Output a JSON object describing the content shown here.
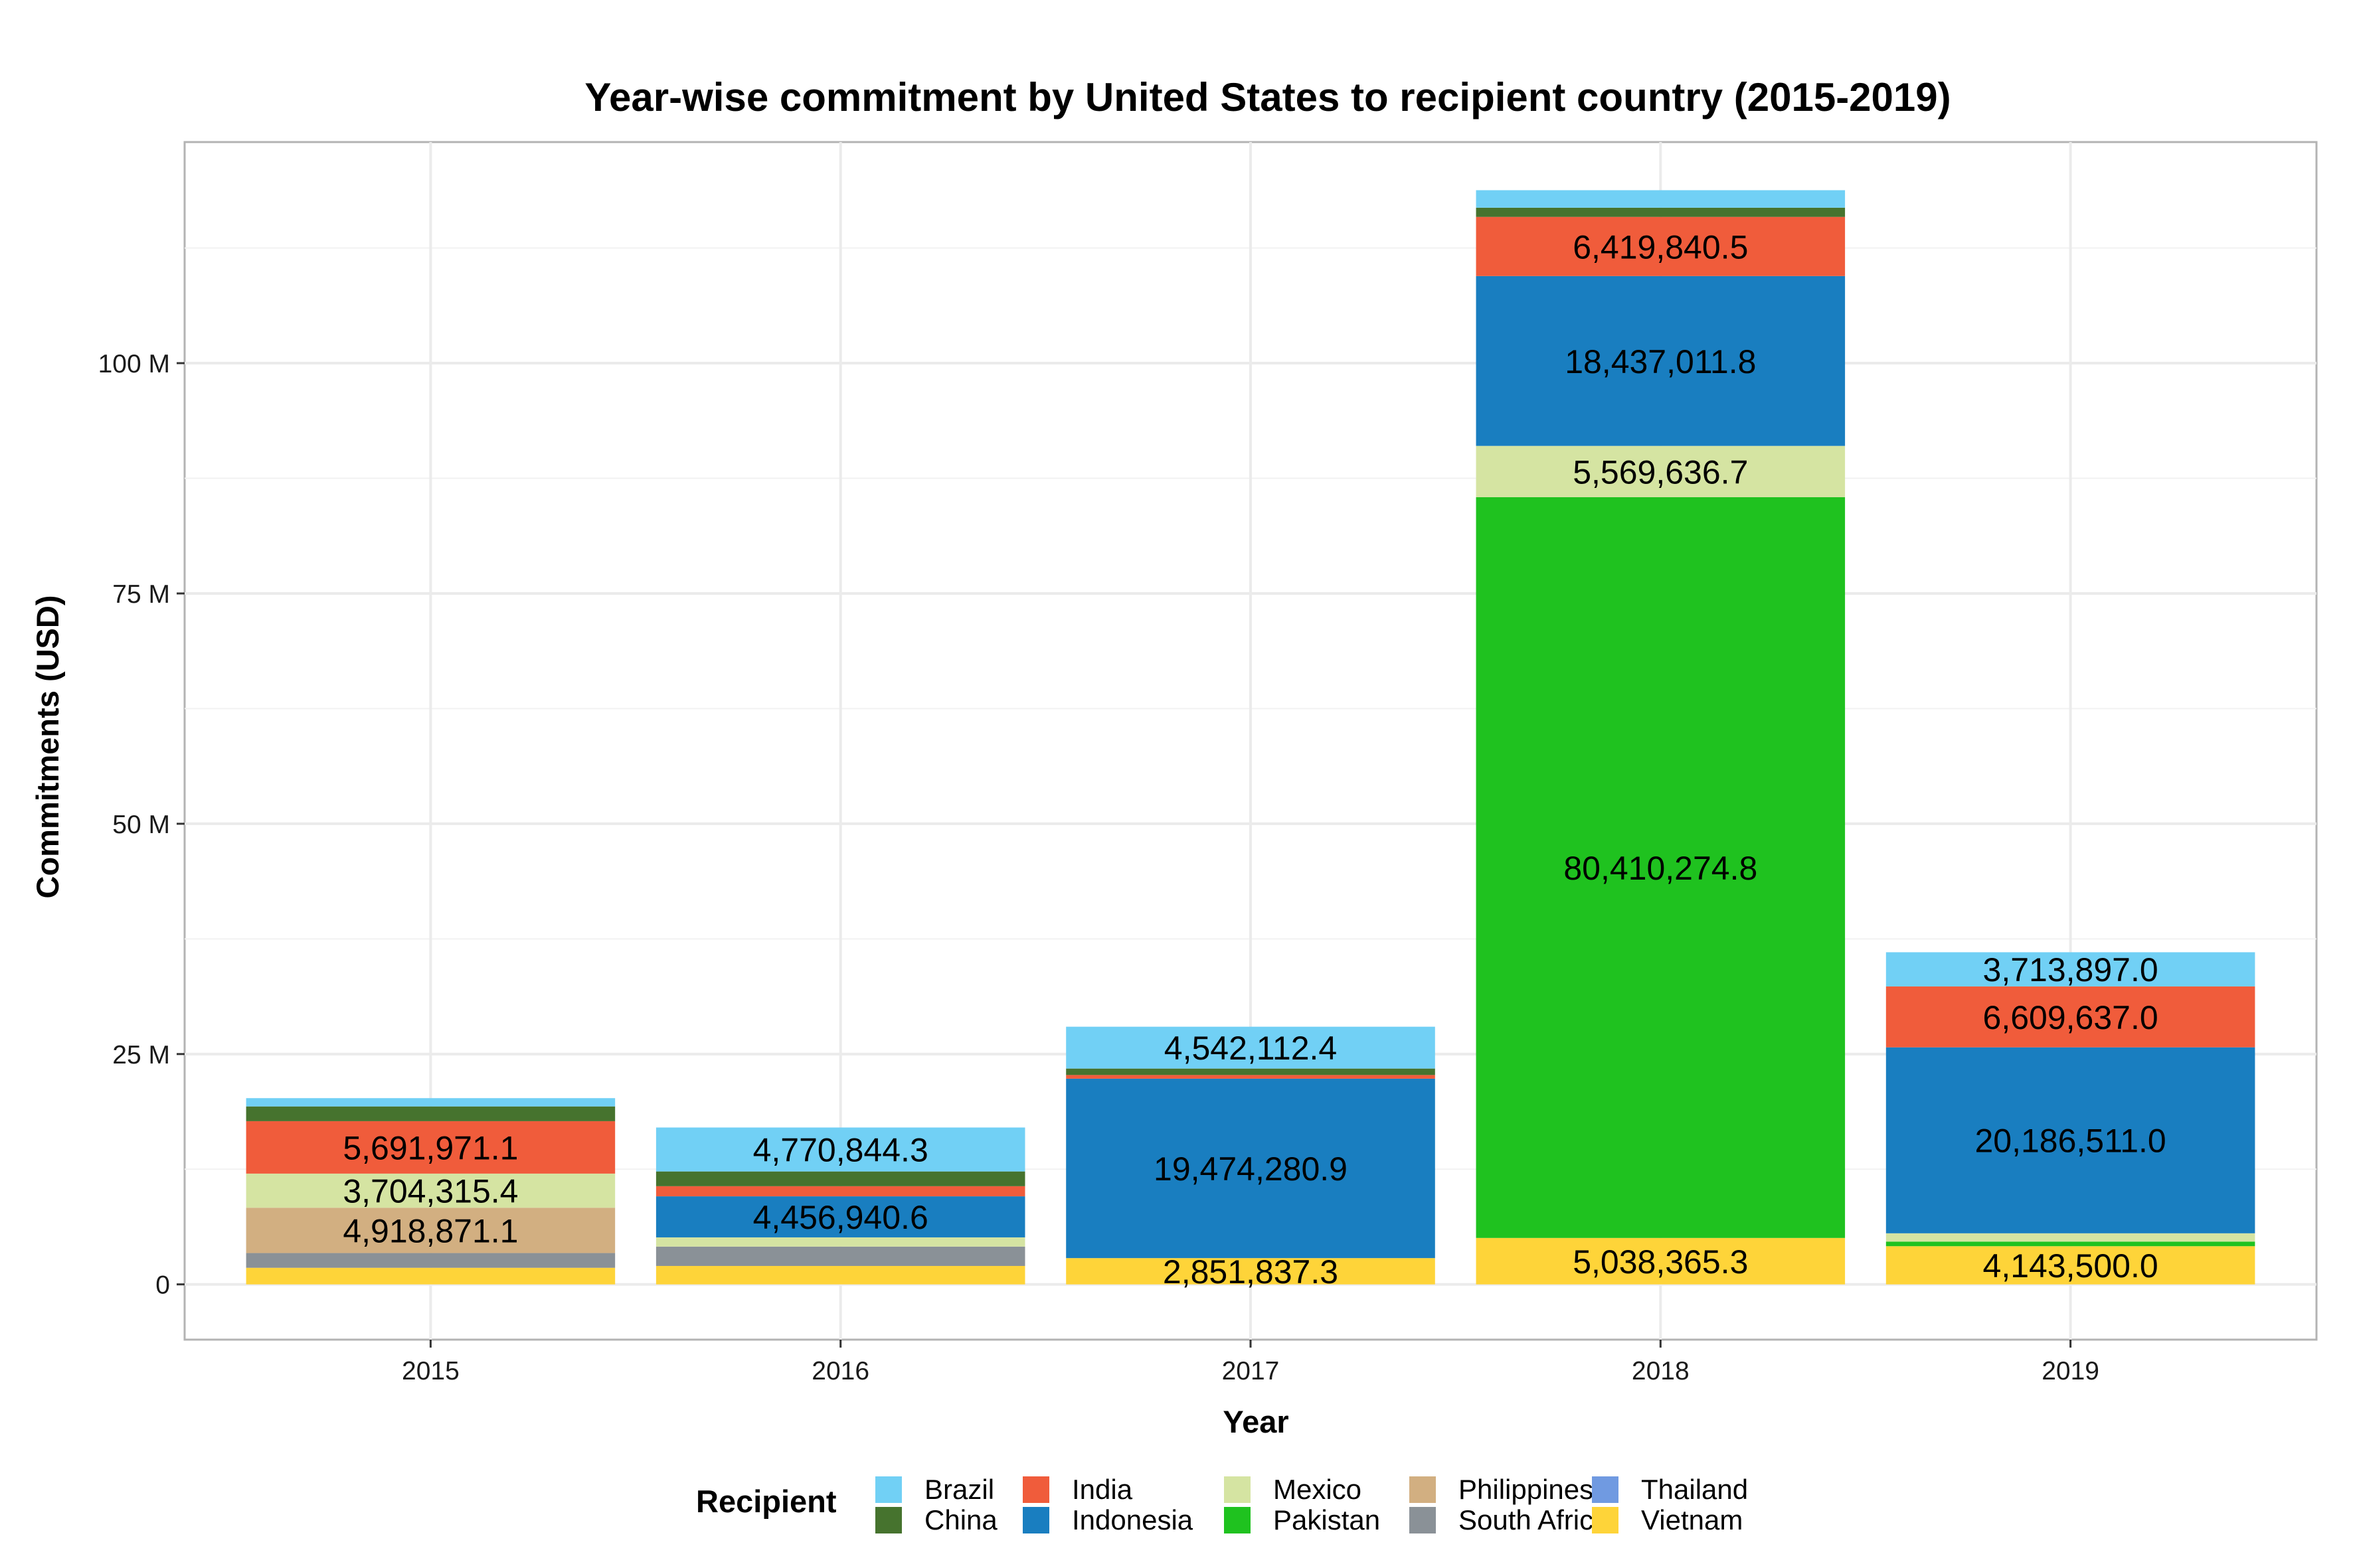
{
  "chart_data": {
    "type": "bar",
    "stacked": true,
    "title": "Year-wise commitment by United States to recipient country (2015-2019)",
    "xlabel": "Year",
    "ylabel": "Commitments (USD)",
    "categories": [
      "2015",
      "2016",
      "2017",
      "2018",
      "2019"
    ],
    "ylim": [
      -6000000,
      124000000
    ],
    "yticks": [
      {
        "value": 0,
        "label": "0"
      },
      {
        "value": 25000000,
        "label": "25 M"
      },
      {
        "value": 50000000,
        "label": "50 M"
      },
      {
        "value": 75000000,
        "label": "75 M"
      },
      {
        "value": 100000000,
        "label": "100 M"
      }
    ],
    "grid": true,
    "legend_title": "Recipient",
    "legend_position": "bottom",
    "series": [
      {
        "name": "Vietnam",
        "color": "#FED439",
        "values": [
          1800000,
          2000000,
          2851837.3,
          5038365.3,
          4143500.0
        ],
        "labels": [
          "",
          "",
          "2,851,837.3",
          "5,038,365.3",
          "4,143,500.0"
        ]
      },
      {
        "name": "Thailand",
        "color": "#709AE1",
        "values": [
          0,
          0,
          0,
          0,
          0
        ],
        "labels": [
          "",
          "",
          "",
          "",
          ""
        ]
      },
      {
        "name": "South Africa",
        "color": "#8A9197",
        "values": [
          1600000,
          2100000,
          0,
          0,
          0
        ],
        "labels": [
          "",
          "",
          "",
          "",
          ""
        ]
      },
      {
        "name": "Philippines",
        "color": "#D2AF81",
        "values": [
          4918871.1,
          0,
          0,
          0,
          0
        ],
        "labels": [
          "4,918,871.1",
          "",
          "",
          "",
          ""
        ]
      },
      {
        "name": "Pakistan",
        "color": "#1FC21F",
        "values": [
          0,
          0,
          0,
          80410274.8,
          500000
        ],
        "labels": [
          "",
          "",
          "",
          "80,410,274.8",
          ""
        ]
      },
      {
        "name": "Mexico",
        "color": "#D5E4A2",
        "values": [
          3704315.4,
          1000000,
          0,
          5569636.7,
          900000
        ],
        "labels": [
          "3,704,315.4",
          "",
          "",
          "5,569,636.7",
          ""
        ]
      },
      {
        "name": "Indonesia",
        "color": "#197EC0",
        "values": [
          0,
          4456940.6,
          19474280.9,
          18437011.8,
          20186511.0
        ],
        "labels": [
          "",
          "4,456,940.6",
          "19,474,280.9",
          "18,437,011.8",
          "20,186,511.0"
        ]
      },
      {
        "name": "India",
        "color": "#F05C3B",
        "values": [
          5691971.1,
          1100000,
          400000,
          6419840.5,
          6609637.0
        ],
        "labels": [
          "5,691,971.1",
          "",
          "",
          "6,419,840.5",
          "6,609,637.0"
        ]
      },
      {
        "name": "China",
        "color": "#46732E",
        "values": [
          1600000,
          1600000,
          700000,
          1000000,
          0
        ],
        "labels": [
          "",
          "",
          "",
          "",
          ""
        ]
      },
      {
        "name": "Brazil",
        "color": "#71D0F5",
        "values": [
          900000,
          4770844.3,
          4542112.4,
          1900000,
          3713897.0
        ],
        "labels": [
          "",
          "4,770,844.3",
          "4,542,112.4",
          "",
          "3,713,897.0"
        ]
      }
    ],
    "legend_order": [
      "Brazil",
      "China",
      "India",
      "Indonesia",
      "Mexico",
      "Pakistan",
      "Philippines",
      "South Africa",
      "Thailand",
      "Vietnam"
    ]
  }
}
